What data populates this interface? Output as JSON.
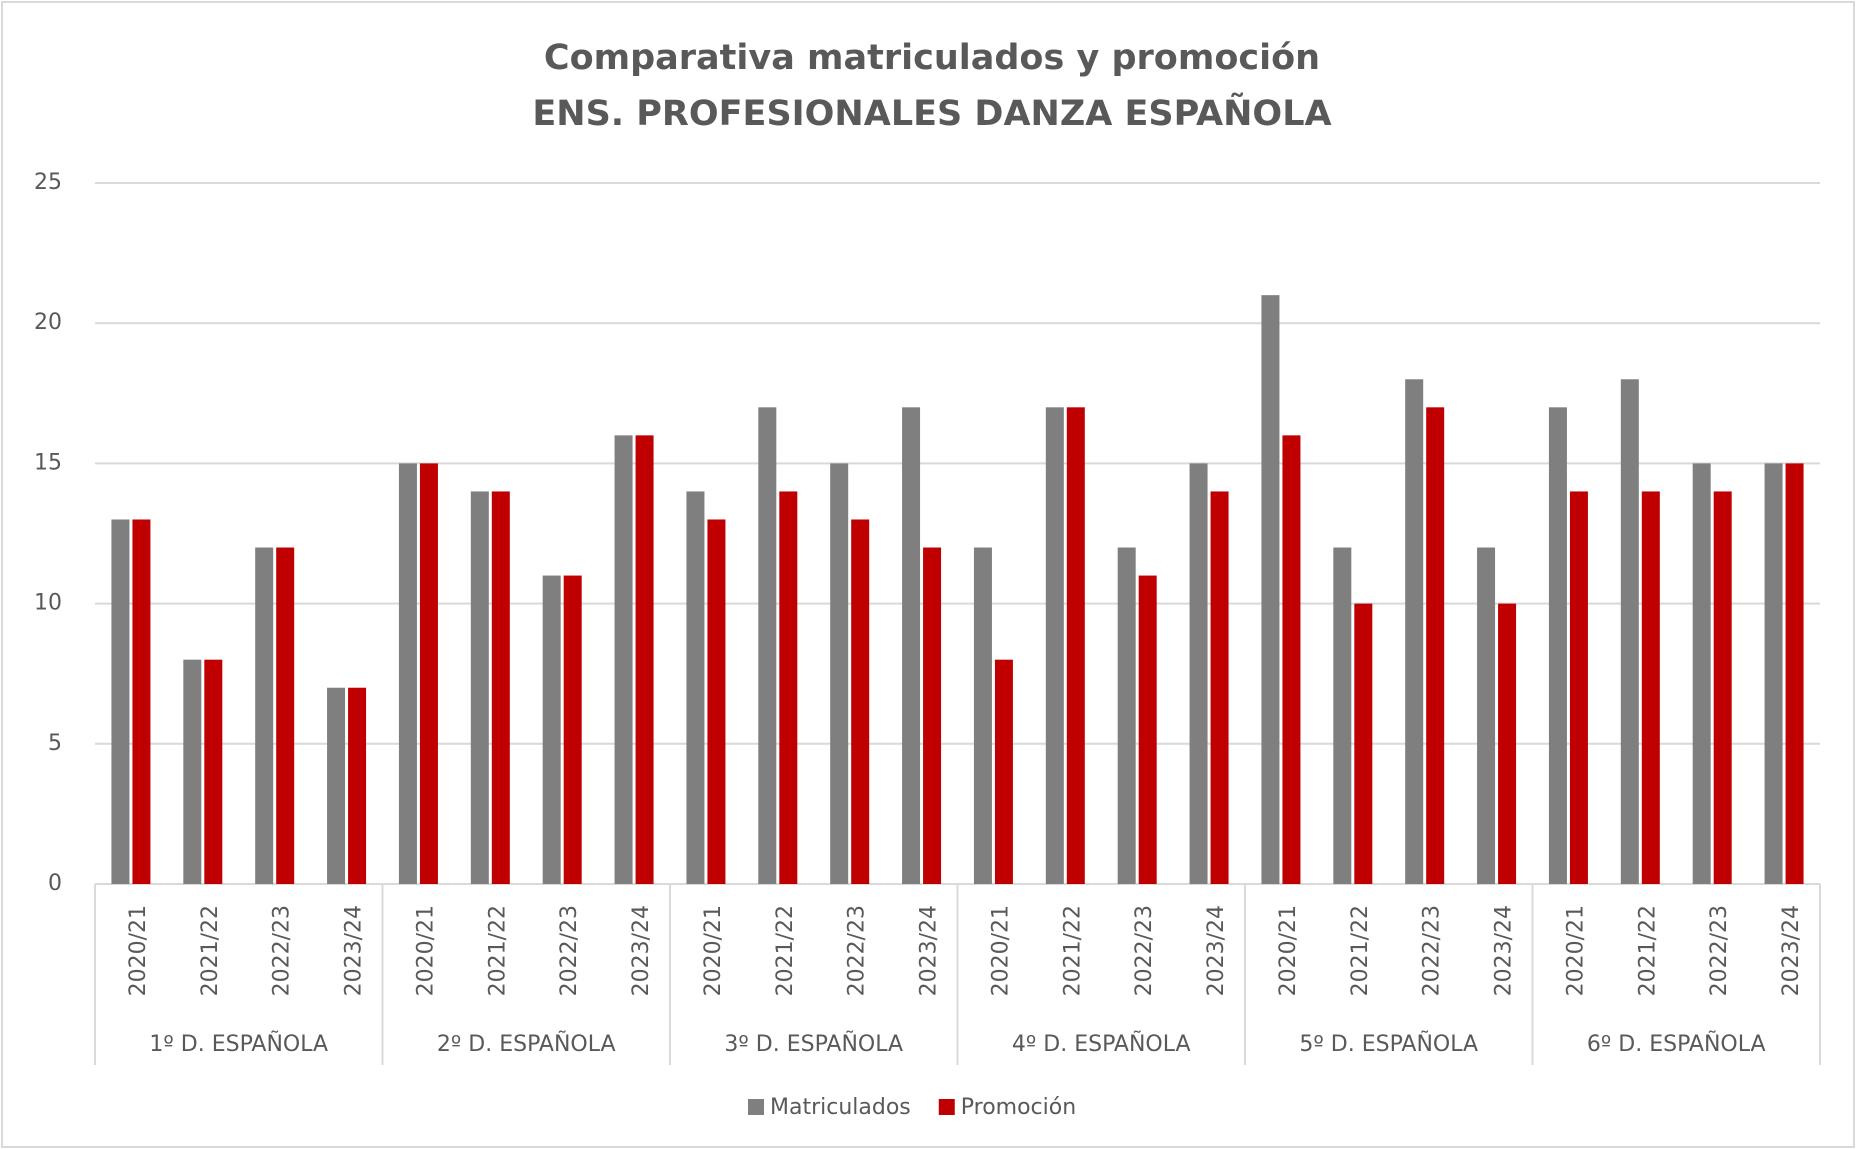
{
  "chart_data": {
    "type": "bar",
    "title": "Comparativa matriculados y promoción",
    "subtitle": "ENS. PROFESIONALES DANZA ESPAÑOLA",
    "categories": [
      "2020/21",
      "2021/22",
      "2022/23",
      "2023/24",
      "2020/21",
      "2021/22",
      "2022/23",
      "2023/24",
      "2020/21",
      "2021/22",
      "2022/23",
      "2023/24",
      "2020/21",
      "2021/22",
      "2022/23",
      "2023/24",
      "2020/21",
      "2021/22",
      "2022/23",
      "2023/24",
      "2020/21",
      "2021/22",
      "2022/23",
      "2023/24"
    ],
    "groups": [
      "1º D. ESPAÑOLA",
      "2º D. ESPAÑOLA",
      "3º D. ESPAÑOLA",
      "4º D. ESPAÑOLA",
      "5º D. ESPAÑOLA",
      "6º D. ESPAÑOLA"
    ],
    "series": [
      {
        "name": "Matriculados",
        "color": "#7f7f7f",
        "values": [
          13,
          8,
          12,
          7,
          15,
          14,
          11,
          16,
          14,
          17,
          15,
          17,
          12,
          17,
          12,
          15,
          21,
          12,
          18,
          12,
          17,
          18,
          15,
          15
        ]
      },
      {
        "name": "Promoción",
        "color": "#c00000",
        "values": [
          13,
          8,
          12,
          7,
          15,
          14,
          11,
          16,
          13,
          14,
          13,
          12,
          8,
          17,
          11,
          14,
          16,
          10,
          17,
          10,
          14,
          14,
          14,
          15
        ]
      }
    ],
    "ylim": [
      0,
      25
    ],
    "yticks": [
      0,
      5,
      10,
      15,
      20,
      25
    ],
    "grid": true,
    "legend": "bottom"
  }
}
